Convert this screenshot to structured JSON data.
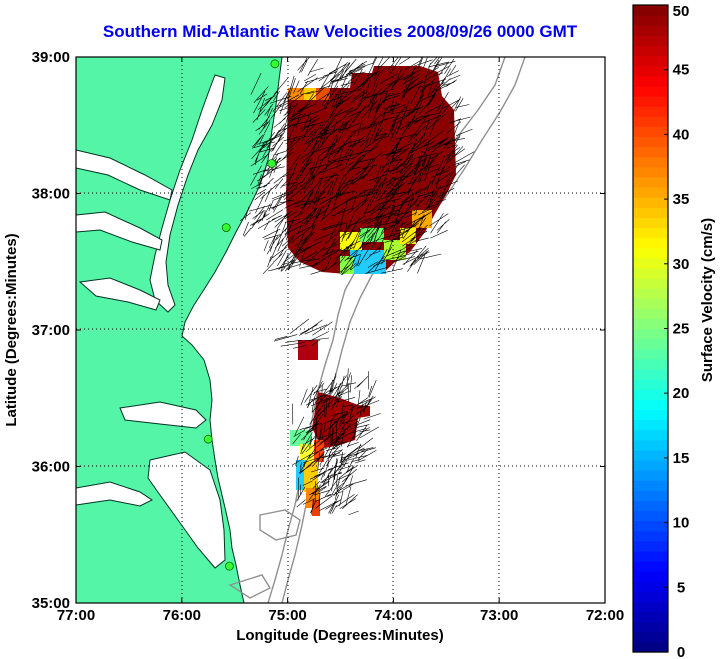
{
  "title": "Southern Mid-Atlantic Raw Velocities 2008/09/26 0000 GMT",
  "xlabel": "Longitude (Degrees:Minutes)",
  "ylabel": "Latitude (Degrees:Minutes)",
  "colorbar_label": "Surface Velocity (cm/s)",
  "x_ticks": [
    {
      "value": -77,
      "label": "77:00"
    },
    {
      "value": -76,
      "label": "76:00"
    },
    {
      "value": -75,
      "label": "75:00"
    },
    {
      "value": -74,
      "label": "74:00"
    },
    {
      "value": -73,
      "label": "73:00"
    },
    {
      "value": -72,
      "label": "72:00"
    }
  ],
  "y_ticks": [
    {
      "value": 35,
      "label": "35:00"
    },
    {
      "value": 36,
      "label": "36:00"
    },
    {
      "value": 37,
      "label": "37:00"
    },
    {
      "value": 38,
      "label": "38:00"
    },
    {
      "value": 39,
      "label": "39:00"
    }
  ],
  "colorbar_ticks": [
    {
      "value": 0,
      "label": "0"
    },
    {
      "value": 5,
      "label": "5"
    },
    {
      "value": 10,
      "label": "10"
    },
    {
      "value": 15,
      "label": "15"
    },
    {
      "value": 20,
      "label": "20"
    },
    {
      "value": 25,
      "label": "25"
    },
    {
      "value": 30,
      "label": "30"
    },
    {
      "value": 35,
      "label": "35"
    },
    {
      "value": 40,
      "label": "40"
    },
    {
      "value": 45,
      "label": "45"
    },
    {
      "value": 50,
      "label": "50"
    }
  ],
  "colors": {
    "land": "#55f5a8",
    "coast": "#003322",
    "bathymetry": "#909090",
    "grid": "#000000",
    "station": "#33ff33"
  },
  "chart_data": {
    "type": "heatmap",
    "xlim": [
      -77,
      -72
    ],
    "ylim": [
      35,
      39
    ],
    "clim": [
      0,
      50
    ],
    "grid": "dotted",
    "colormap": "jet",
    "colorbar_position": "right",
    "data_units": "cm/s",
    "stations": [
      {
        "lon": -75.12,
        "lat": 38.95
      },
      {
        "lon": -75.15,
        "lat": 38.22
      },
      {
        "lon": -75.58,
        "lat": 37.75
      },
      {
        "lon": -75.75,
        "lat": 36.2
      },
      {
        "lon": -75.55,
        "lat": 35.27
      }
    ],
    "velocity_regions": [
      {
        "name": "northern",
        "lon": [
          -75.0,
          -73.6
        ],
        "lat": [
          37.45,
          38.9
        ],
        "dominant_speed": 50
      },
      {
        "name": "northern-slow-patch",
        "lon": [
          -74.6,
          -74.1
        ],
        "lat": [
          37.45,
          37.7
        ],
        "dominant_speed": 12
      },
      {
        "name": "offshore-patch",
        "lon": [
          -74.9,
          -74.7
        ],
        "lat": [
          36.88,
          37.03
        ],
        "dominant_speed": 50
      },
      {
        "name": "southern",
        "lon": [
          -74.95,
          -74.3
        ],
        "lat": [
          35.7,
          36.5
        ],
        "dominant_speed": 45
      },
      {
        "name": "southern-nearshore",
        "lon": [
          -74.95,
          -74.75
        ],
        "lat": [
          35.7,
          36.3
        ],
        "dominant_speed": 25
      }
    ]
  }
}
